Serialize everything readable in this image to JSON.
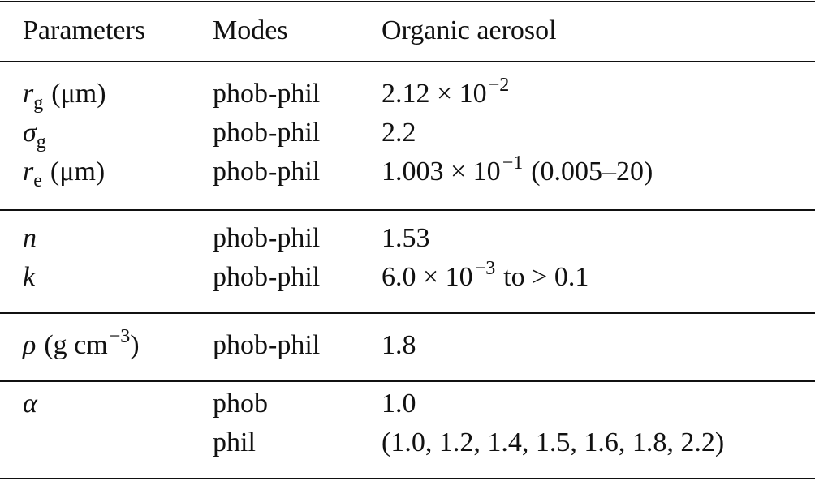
{
  "table": {
    "header": [
      "Parameters",
      "Modes",
      "Organic aerosol"
    ],
    "rows": [
      {
        "parameter": {
          "symbol": "r",
          "subscript": "g",
          "unit": "(μm)"
        },
        "mode": "phob-phil",
        "value": {
          "base": "2.12 × 10",
          "exponent": "−2"
        }
      },
      {
        "parameter": {
          "symbol": "σ",
          "subscript": "g"
        },
        "mode": "phob-phil",
        "value": {
          "base": "2.2"
        }
      },
      {
        "parameter": {
          "symbol": "r",
          "subscript": "e",
          "unit": "(μm)"
        },
        "mode": "phob-phil",
        "value": {
          "base": "1.003 × 10",
          "exponent": "−1",
          "suffix": "(0.005–20)"
        }
      },
      {
        "parameter": {
          "symbol": "n"
        },
        "mode": "phob-phil",
        "value": {
          "base": "1.53"
        }
      },
      {
        "parameter": {
          "symbol": "k"
        },
        "mode": "phob-phil",
        "value": {
          "base": "6.0 × 10",
          "exponent": "−3",
          "suffix": "to > 0.1"
        }
      },
      {
        "parameter": {
          "symbol": "ρ",
          "unit": "(g cm",
          "unit_exponent": "−3",
          "unit_end": ")"
        },
        "mode": "phob-phil",
        "value": {
          "base": "1.8"
        }
      },
      {
        "parameter": {
          "symbol": "α"
        },
        "mode": "phob",
        "value": {
          "base": "1.0"
        }
      },
      {
        "mode": "phil",
        "value": {
          "base": "(1.0, 1.2, 1.4, 1.5, 1.6, 1.8, 2.2)"
        }
      }
    ]
  }
}
